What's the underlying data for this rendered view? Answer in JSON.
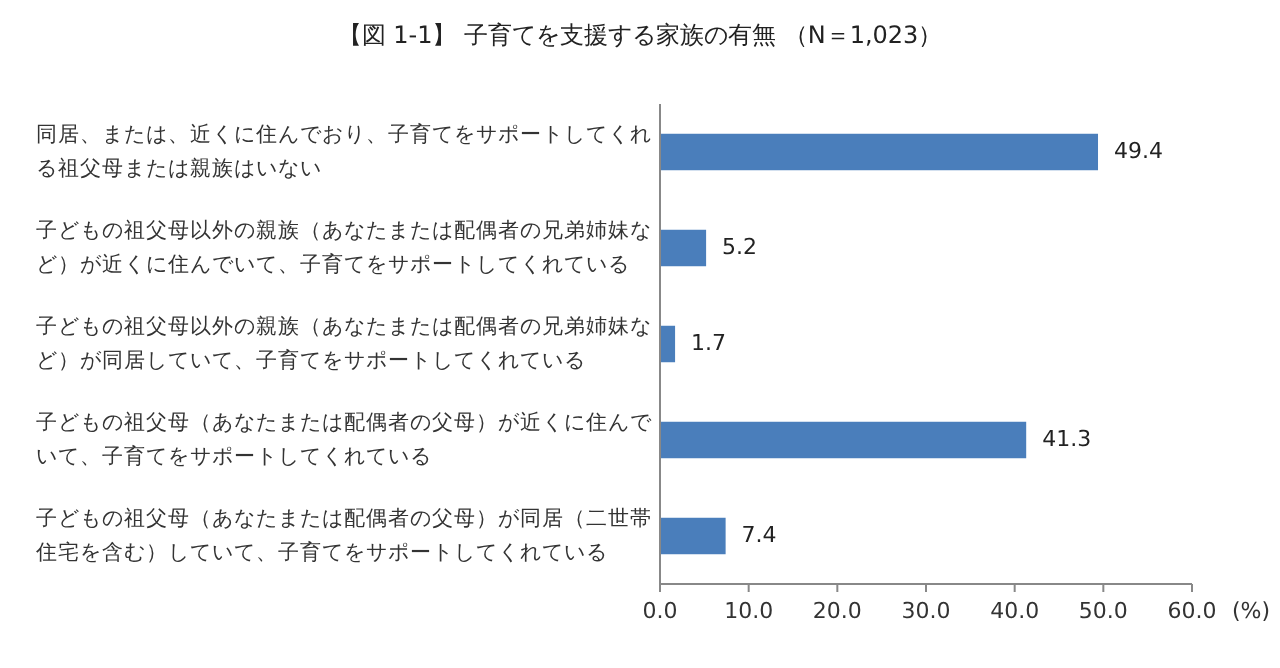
{
  "chart_data": {
    "type": "bar",
    "orientation": "horizontal",
    "title": "【図 1-1】 子育てを支援する家族の有無 （N＝1,023）",
    "categories": [
      "同居、または、近くに住んでおり、子育てをサポートしてくれる祖父母または親族はいない",
      "子どもの祖父母以外の親族（あなたまたは配偶者の兄弟姉妹など）が近くに住んでいて、子育てをサポートしてくれている",
      "子どもの祖父母以外の親族（あなたまたは配偶者の兄弟姉妹など）が同居していて、子育てをサポートしてくれている",
      "子どもの祖父母（あなたまたは配偶者の父母）が近くに住んでいて、子育てをサポートしてくれている",
      "子どもの祖父母（あなたまたは配偶者の父母）が同居（二世帯住宅を含む）していて、子育てをサポートしてくれている"
    ],
    "values": [
      49.4,
      5.2,
      1.7,
      41.3,
      7.4
    ],
    "color": "#4a7ebb",
    "data_labels": true,
    "xlabel": "(%)",
    "xlim": [
      0,
      60
    ],
    "xticks": [
      {
        "value": 0,
        "label": "0.0"
      },
      {
        "value": 10,
        "label": "10.0"
      },
      {
        "value": 20,
        "label": "20.0"
      },
      {
        "value": 30,
        "label": "30.0"
      },
      {
        "value": 40,
        "label": "40.0"
      },
      {
        "value": 50,
        "label": "50.0"
      },
      {
        "value": 60,
        "label": "60.0"
      }
    ],
    "grid": false
  }
}
